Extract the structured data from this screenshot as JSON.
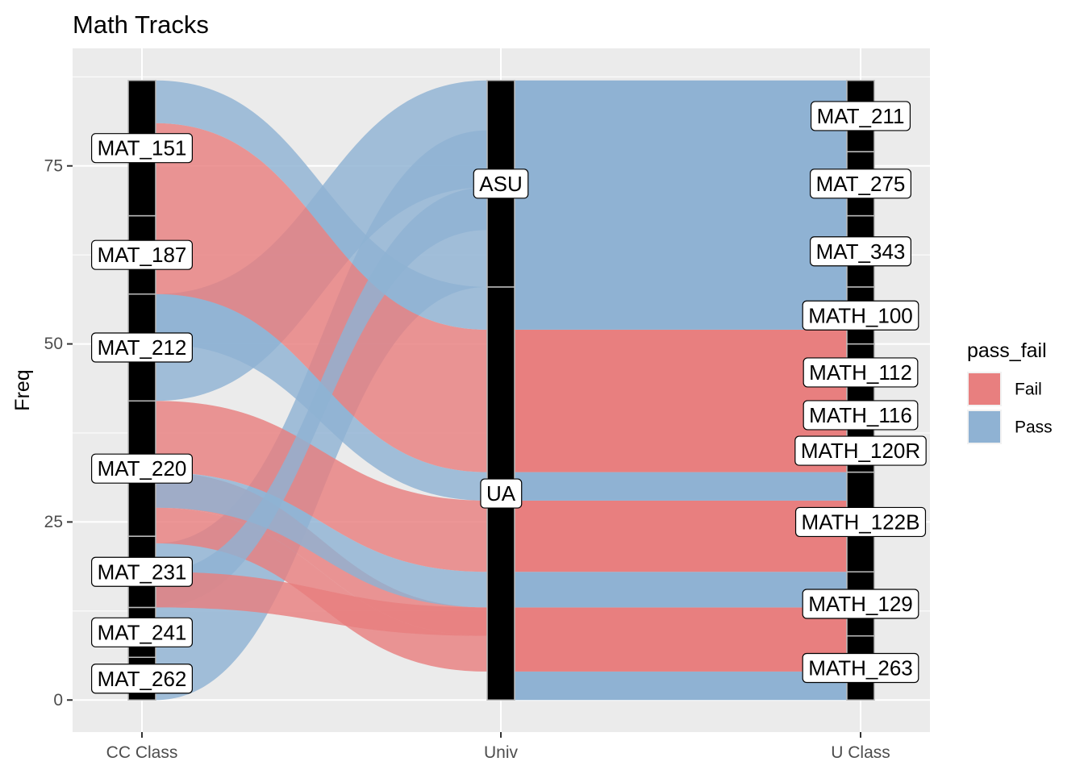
{
  "chart_data": {
    "type": "alluvial",
    "title": "Math Tracks",
    "xlabel": "",
    "ylabel": "Freq",
    "ylim": [
      -4.5,
      91.5
    ],
    "y_ticks": [
      0,
      25,
      50,
      75
    ],
    "axes": [
      "CC Class",
      "Univ",
      "U Class"
    ],
    "grid": true,
    "legend": {
      "title": "pass_fail",
      "placement": "right",
      "items": [
        {
          "name": "Fail",
          "color": "#E87F7F"
        },
        {
          "name": "Pass",
          "color": "#8FB2D3"
        }
      ]
    },
    "strata": {
      "CC Class": [
        {
          "label": "MAT_262",
          "ymin": 0,
          "ymax": 6
        },
        {
          "label": "MAT_241",
          "ymin": 6,
          "ymax": 13
        },
        {
          "label": "MAT_231",
          "ymin": 13,
          "ymax": 23
        },
        {
          "label": "MAT_220",
          "ymin": 23,
          "ymax": 42
        },
        {
          "label": "MAT_212",
          "ymin": 42,
          "ymax": 57
        },
        {
          "label": "MAT_187",
          "ymin": 57,
          "ymax": 68
        },
        {
          "label": "MAT_151",
          "ymin": 68,
          "ymax": 87
        }
      ],
      "Univ": [
        {
          "label": "UA",
          "ymin": 0,
          "ymax": 58
        },
        {
          "label": "ASU",
          "ymin": 58,
          "ymax": 87
        }
      ],
      "U Class": [
        {
          "label": "MATH_263",
          "ymin": 0,
          "ymax": 9
        },
        {
          "label": "MATH_129",
          "ymin": 9,
          "ymax": 18
        },
        {
          "label": "MATH_122B",
          "ymin": 18,
          "ymax": 32
        },
        {
          "label": "MATH_120R",
          "ymin": 32,
          "ymax": 38
        },
        {
          "label": "MATH_116",
          "ymin": 38,
          "ymax": 42
        },
        {
          "label": "MATH_112",
          "ymin": 42,
          "ymax": 50
        },
        {
          "label": "MATH_100",
          "ymin": 50,
          "ymax": 58
        },
        {
          "label": "MAT_343",
          "ymin": 58,
          "ymax": 68
        },
        {
          "label": "MAT_275",
          "ymin": 68,
          "ymax": 77
        },
        {
          "label": "MAT_211",
          "ymin": 77,
          "ymax": 87
        }
      ]
    },
    "univ_to_uclass": [
      {
        "pass_fail": "Pass",
        "ymin": 0,
        "ymax": 4
      },
      {
        "pass_fail": "Fail",
        "ymin": 4,
        "ymax": 13
      },
      {
        "pass_fail": "Pass",
        "ymin": 13,
        "ymax": 18
      },
      {
        "pass_fail": "Fail",
        "ymin": 18,
        "ymax": 28
      },
      {
        "pass_fail": "Pass",
        "ymin": 28,
        "ymax": 32
      },
      {
        "pass_fail": "Fail",
        "ymin": 32,
        "ymax": 52
      },
      {
        "pass_fail": "Pass",
        "ymin": 52,
        "ymax": 87
      }
    ],
    "cc_to_univ": [
      {
        "pass_fail": "Pass",
        "y0": [
          0,
          22
        ],
        "y1": [
          58,
          80
        ]
      },
      {
        "pass_fail": "Fail",
        "y0": [
          22,
          27
        ],
        "y1": [
          4,
          9
        ]
      },
      {
        "pass_fail": "Fail",
        "y0": [
          27,
          32
        ],
        "y1": [
          9,
          13
        ]
      },
      {
        "pass_fail": "Pass",
        "y0": [
          27,
          32
        ],
        "y1": [
          13,
          18
        ]
      },
      {
        "pass_fail": "Fail",
        "y0": [
          32,
          42
        ],
        "y1": [
          18,
          28
        ]
      },
      {
        "pass_fail": "Pass",
        "y0": [
          42,
          57
        ],
        "y1": [
          72,
          87
        ]
      },
      {
        "pass_fail": "Pass",
        "y0": [
          50,
          57
        ],
        "y1": [
          28,
          32
        ]
      },
      {
        "pass_fail": "Fail",
        "y0": [
          57,
          81
        ],
        "y1": [
          32,
          52
        ]
      },
      {
        "pass_fail": "Pass",
        "y0": [
          81,
          87
        ],
        "y1": [
          52,
          58
        ]
      },
      {
        "pass_fail": "Pass",
        "y0": [
          13,
          18
        ],
        "y1": [
          66,
          72
        ]
      },
      {
        "pass_fail": "Fail",
        "y0": [
          13,
          18
        ],
        "y1": [
          9,
          13
        ]
      }
    ]
  }
}
